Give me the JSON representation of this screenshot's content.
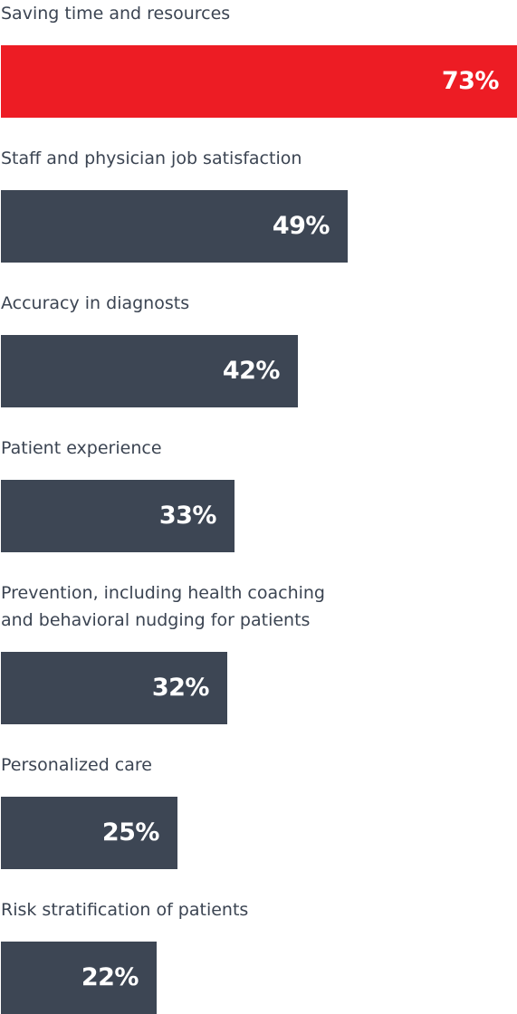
{
  "chart_data": {
    "type": "bar",
    "orientation": "horizontal",
    "categories": [
      "Saving time and resources",
      "Staff and physician job satisfaction",
      "Accuracy in diagnosts",
      "Patient experience",
      "Prevention, including health coaching\nand behavioral nudging for patients",
      "Personalized care",
      "Risk stratification of patients"
    ],
    "values": [
      73,
      49,
      42,
      33,
      32,
      25,
      22
    ],
    "value_labels": [
      "73%",
      "49%",
      "42%",
      "33%",
      "32%",
      "25%",
      "22%"
    ],
    "highlight_index": 0,
    "xlim": [
      0,
      73
    ],
    "grid": false,
    "legend": "none"
  },
  "colors": {
    "highlight": "#ed1c24",
    "bar": "#3d4654",
    "label_text": "#3b4452",
    "value_text": "#ffffff"
  }
}
